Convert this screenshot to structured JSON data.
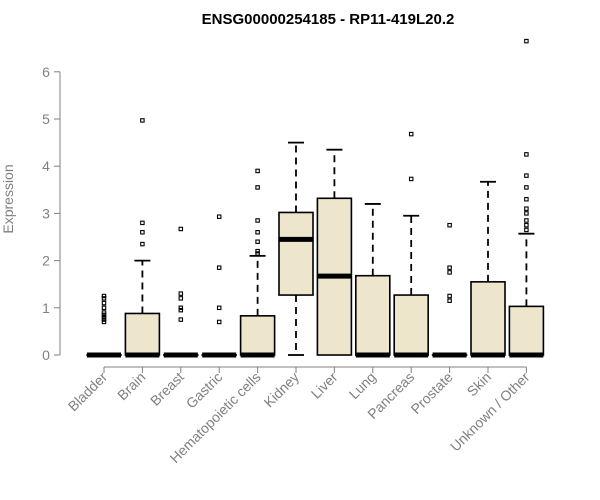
{
  "chart_data": {
    "type": "box",
    "title": "ENSG00000254185 - RP11-419L20.2",
    "ylabel": "Expression",
    "xlabel": "",
    "ylim": [
      0,
      6.6
    ],
    "yticks": [
      0,
      1,
      2,
      3,
      4,
      5,
      6
    ],
    "colors": {
      "box_fill": "#ede6cc",
      "stroke": "#000000",
      "axis": "#808080"
    },
    "categories": [
      "Bladder",
      "Brain",
      "Breast",
      "Gastric",
      "Hematopoietic cells",
      "Kidney",
      "Liver",
      "Lung",
      "Pancreas",
      "Prostate",
      "Skin",
      "Unknown / Other"
    ],
    "boxes": [
      {
        "q1": 0,
        "median": 0,
        "q3": 0,
        "whisker_low": 0,
        "whisker_high": 0,
        "outliers": [
          0.7,
          0.75,
          0.8,
          0.85,
          0.9,
          1.0,
          1.1,
          1.2,
          1.25
        ]
      },
      {
        "q1": 0,
        "median": 0,
        "q3": 0.88,
        "whisker_low": 0,
        "whisker_high": 2.0,
        "outliers": [
          2.35,
          2.6,
          2.8,
          4.97
        ]
      },
      {
        "q1": 0,
        "median": 0,
        "q3": 0,
        "whisker_low": 0,
        "whisker_high": 0,
        "outliers": [
          0.75,
          0.95,
          1.0,
          1.2,
          1.3,
          2.67
        ]
      },
      {
        "q1": 0,
        "median": 0,
        "q3": 0,
        "whisker_low": 0,
        "whisker_high": 0,
        "outliers": [
          0.7,
          1.0,
          1.85,
          2.93
        ]
      },
      {
        "q1": 0,
        "median": 0,
        "q3": 0.83,
        "whisker_low": 0,
        "whisker_high": 2.1,
        "outliers": [
          2.15,
          2.2,
          2.4,
          2.6,
          2.85,
          3.55,
          3.9
        ]
      },
      {
        "q1": 1.27,
        "median": 2.45,
        "q3": 3.02,
        "whisker_low": 0,
        "whisker_high": 4.5,
        "outliers": []
      },
      {
        "q1": 0,
        "median": 1.67,
        "q3": 3.32,
        "whisker_low": 0,
        "whisker_high": 4.35,
        "outliers": []
      },
      {
        "q1": 0,
        "median": 0,
        "q3": 1.68,
        "whisker_low": 0,
        "whisker_high": 3.2,
        "outliers": []
      },
      {
        "q1": 0,
        "median": 0,
        "q3": 1.27,
        "whisker_low": 0,
        "whisker_high": 2.95,
        "outliers": [
          3.73,
          4.68
        ]
      },
      {
        "q1": 0,
        "median": 0,
        "q3": 0,
        "whisker_low": 0,
        "whisker_high": 0,
        "outliers": [
          1.15,
          1.25,
          1.75,
          1.85,
          2.75
        ]
      },
      {
        "q1": 0,
        "median": 0,
        "q3": 1.55,
        "whisker_low": 0,
        "whisker_high": 3.67,
        "outliers": []
      },
      {
        "q1": 0,
        "median": 0,
        "q3": 1.03,
        "whisker_low": 0,
        "whisker_high": 2.57,
        "outliers": [
          2.65,
          2.75,
          2.85,
          3.0,
          3.1,
          3.3,
          3.55,
          3.8,
          4.25,
          6.65
        ]
      }
    ]
  }
}
